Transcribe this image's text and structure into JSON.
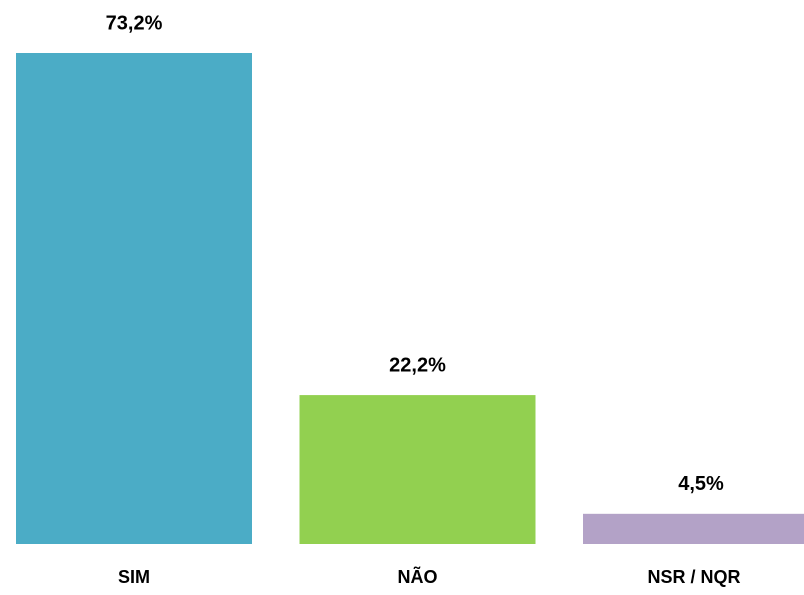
{
  "chart_data": {
    "type": "bar",
    "categories": [
      "SIM",
      "NÃO",
      "NSR / NQR"
    ],
    "values": [
      73.2,
      22.2,
      4.5
    ],
    "value_labels": [
      "73,2%",
      "22,2%",
      "4,5%"
    ],
    "colors": [
      "#4bacc6",
      "#92d050",
      "#b3a2c7"
    ],
    "grid": false
  }
}
